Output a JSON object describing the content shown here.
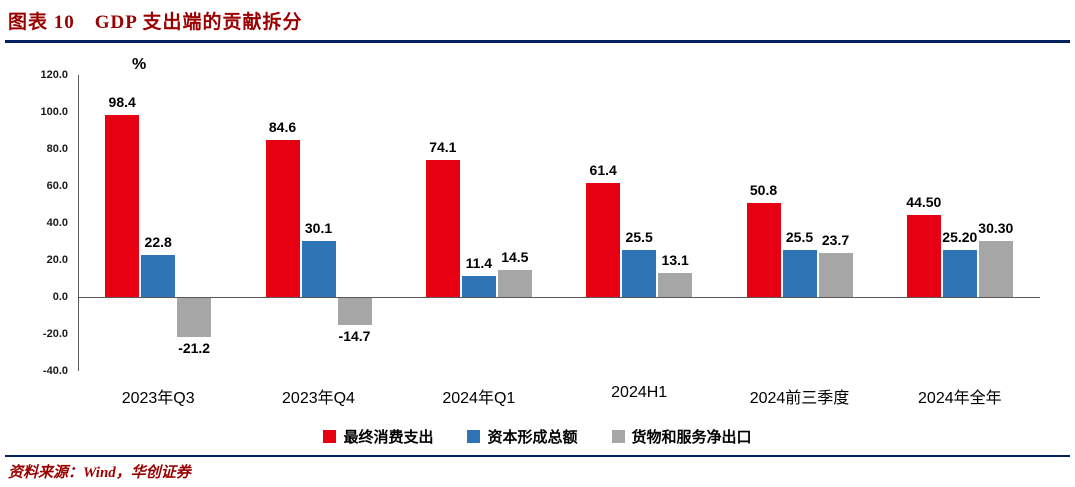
{
  "header": {
    "title": "图表 10　GDP 支出端的贡献拆分"
  },
  "chart_data": {
    "type": "bar",
    "title": "GDP 支出端的贡献拆分",
    "unit": "%",
    "categories": [
      "2023年Q3",
      "2023年Q4",
      "2024年Q1",
      "2024H1",
      "2024前三季度",
      "2024年全年"
    ],
    "series": [
      {
        "name": "最终消费支出",
        "color": "#e60012",
        "values": [
          98.4,
          84.6,
          74.1,
          61.4,
          50.8,
          44.5
        ],
        "labels": [
          "98.4",
          "84.6",
          "74.1",
          "61.4",
          "50.8",
          "44.50"
        ]
      },
      {
        "name": "资本形成总额",
        "color": "#2e75b6",
        "values": [
          22.8,
          30.1,
          11.4,
          25.5,
          25.5,
          25.2
        ],
        "labels": [
          "22.8",
          "30.1",
          "11.4",
          "25.5",
          "25.5",
          "25.20"
        ]
      },
      {
        "name": "货物和服务净出口",
        "color": "#a6a6a6",
        "values": [
          -21.2,
          -14.7,
          14.5,
          13.1,
          23.7,
          30.3
        ],
        "labels": [
          "-21.2",
          "-14.7",
          "14.5",
          "13.1",
          "23.7",
          "30.30"
        ]
      }
    ],
    "ylim": [
      -40,
      120
    ],
    "yticks": [
      "120.0",
      "100.0",
      "80.0",
      "60.0",
      "40.0",
      "20.0",
      "0.0",
      "-20.0",
      "-40.0"
    ],
    "grid": false,
    "legend_position": "bottom"
  },
  "footer": {
    "source": "资料来源：Wind，华创证券"
  },
  "colors": {
    "accent_dark_red": "#9a0000",
    "rule_navy": "#002060",
    "axis_gray": "#595959"
  }
}
